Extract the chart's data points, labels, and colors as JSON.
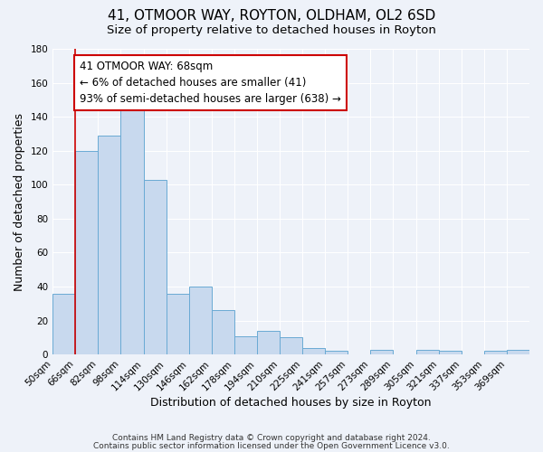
{
  "title": "41, OTMOOR WAY, ROYTON, OLDHAM, OL2 6SD",
  "subtitle": "Size of property relative to detached houses in Royton",
  "xlabel": "Distribution of detached houses by size in Royton",
  "ylabel": "Number of detached properties",
  "bin_labels": [
    "50sqm",
    "66sqm",
    "82sqm",
    "98sqm",
    "114sqm",
    "130sqm",
    "146sqm",
    "162sqm",
    "178sqm",
    "194sqm",
    "210sqm",
    "225sqm",
    "241sqm",
    "257sqm",
    "273sqm",
    "289sqm",
    "305sqm",
    "321sqm",
    "337sqm",
    "353sqm",
    "369sqm"
  ],
  "bar_values": [
    36,
    120,
    129,
    144,
    103,
    36,
    40,
    26,
    11,
    14,
    10,
    4,
    2,
    0,
    3,
    0,
    3,
    2,
    0,
    2,
    3
  ],
  "bar_color": "#c8d9ee",
  "bar_edge_color": "#6aaad4",
  "vline_color": "#cc0000",
  "annotation_line1": "41 OTMOOR WAY: 68sqm",
  "annotation_line2": "← 6% of detached houses are smaller (41)",
  "annotation_line3": "93% of semi-detached houses are larger (638) →",
  "annotation_box_color": "#ffffff",
  "annotation_box_edge_color": "#cc0000",
  "ylim": [
    0,
    180
  ],
  "yticks": [
    0,
    20,
    40,
    60,
    80,
    100,
    120,
    140,
    160,
    180
  ],
  "footnote1": "Contains HM Land Registry data © Crown copyright and database right 2024.",
  "footnote2": "Contains public sector information licensed under the Open Government Licence v3.0.",
  "background_color": "#eef2f9",
  "grid_color": "#ffffff",
  "title_fontsize": 11,
  "subtitle_fontsize": 9.5,
  "axis_label_fontsize": 9,
  "tick_fontsize": 7.5,
  "annotation_fontsize": 8.5,
  "footnote_fontsize": 6.5
}
